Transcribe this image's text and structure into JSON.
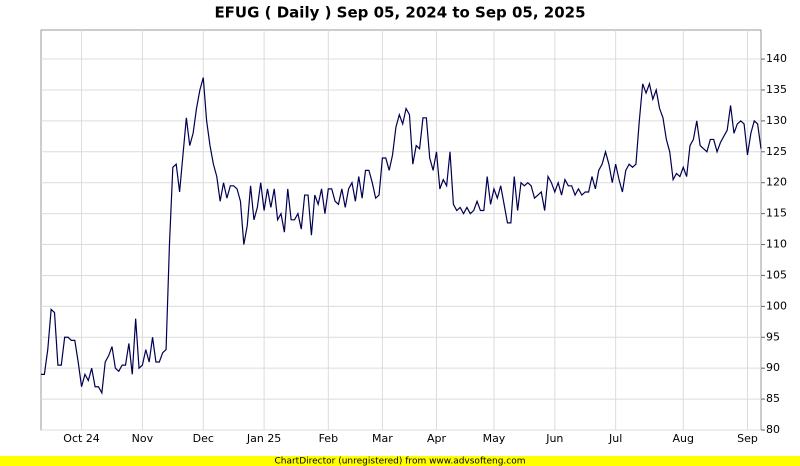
{
  "chart_data": {
    "type": "line",
    "title": "EFUG ( Daily ) Sep 05, 2024 to Sep 05, 2025",
    "footer": "ChartDirector (unregistered) from www.advsofteng.com",
    "categories": [
      null,
      null,
      null,
      null,
      null,
      null,
      null,
      null,
      null,
      null,
      null,
      null,
      "Oct 24",
      null,
      null,
      null,
      null,
      null,
      null,
      null,
      null,
      null,
      null,
      null,
      null,
      null,
      null,
      null,
      null,
      null,
      "Nov",
      null,
      null,
      null,
      null,
      null,
      null,
      null,
      null,
      null,
      null,
      null,
      null,
      null,
      null,
      null,
      null,
      null,
      "Dec",
      null,
      null,
      null,
      null,
      null,
      null,
      null,
      null,
      null,
      null,
      null,
      null,
      null,
      null,
      null,
      null,
      null,
      "Jan 25",
      null,
      null,
      null,
      null,
      null,
      null,
      null,
      null,
      null,
      null,
      null,
      null,
      null,
      null,
      null,
      null,
      null,
      null,
      "Feb",
      null,
      null,
      null,
      null,
      null,
      null,
      null,
      null,
      null,
      null,
      null,
      null,
      null,
      null,
      null,
      "Mar",
      null,
      null,
      null,
      null,
      null,
      null,
      null,
      null,
      null,
      null,
      null,
      null,
      null,
      null,
      null,
      "Apr",
      null,
      null,
      null,
      null,
      null,
      null,
      null,
      null,
      null,
      null,
      null,
      null,
      null,
      null,
      null,
      null,
      "May",
      null,
      null,
      null,
      null,
      null,
      null,
      null,
      null,
      null,
      null,
      null,
      null,
      null,
      null,
      null,
      null,
      null,
      "Jun",
      null,
      null,
      null,
      null,
      null,
      null,
      null,
      null,
      null,
      null,
      null,
      null,
      null,
      null,
      null,
      null,
      null,
      "Jul",
      null,
      null,
      null,
      null,
      null,
      null,
      null,
      null,
      null,
      null,
      null,
      null,
      null,
      null,
      null,
      null,
      null,
      null,
      null,
      "Aug",
      null,
      null,
      null,
      null,
      null,
      null,
      null,
      null,
      null,
      null,
      null,
      null,
      null,
      null,
      null,
      null,
      null,
      null,
      "Sep",
      null,
      null,
      null,
      null
    ],
    "series": [
      {
        "name": "EFUG",
        "color": "#000050",
        "values": [
          89,
          89,
          93,
          99.5,
          99,
          90.5,
          90.5,
          95,
          95,
          94.5,
          94.5,
          91,
          87,
          89,
          88,
          90,
          87,
          87,
          86,
          91,
          92,
          93.5,
          90,
          89.5,
          90.5,
          90.5,
          94,
          89,
          98,
          90,
          90.5,
          93,
          91,
          95,
          91,
          91,
          92.5,
          93,
          110,
          122.5,
          123,
          118.5,
          124.5,
          130.5,
          126,
          128,
          132,
          135,
          137,
          130,
          126,
          123,
          121,
          117,
          120,
          117.5,
          119.5,
          119.5,
          119,
          117,
          110,
          113,
          119.5,
          114,
          116,
          120,
          115.5,
          119,
          116,
          119,
          114,
          115,
          112,
          119,
          114,
          114,
          115,
          112.5,
          118,
          118,
          111.5,
          118,
          116.5,
          119,
          115,
          119,
          119,
          117,
          116.5,
          119,
          116,
          119,
          120,
          117,
          121,
          117.5,
          122,
          122,
          120,
          117.5,
          118,
          124,
          124,
          122,
          124.5,
          129,
          131,
          129.5,
          132,
          131,
          123,
          126,
          125.5,
          130.5,
          130.5,
          124,
          122,
          125,
          119,
          120.5,
          119.5,
          125,
          116.5,
          115.5,
          116,
          115,
          116,
          115,
          115.5,
          117,
          115.5,
          115.5,
          121,
          116.5,
          119,
          117.5,
          119.5,
          116.5,
          113.5,
          113.5,
          121,
          115.5,
          120,
          119.5,
          120,
          119.5,
          117.5,
          118,
          118.5,
          115.5,
          121,
          120,
          118.5,
          120,
          118,
          120.5,
          119.5,
          119.5,
          118,
          119,
          118,
          118.5,
          118.5,
          121,
          119,
          122,
          123,
          125,
          123,
          120,
          123,
          120.5,
          118.5,
          122,
          123,
          122.5,
          123,
          130,
          136,
          134.5,
          136,
          133.5,
          135,
          132,
          130.5,
          127,
          125,
          120.5,
          121.5,
          121,
          122.5,
          121,
          126,
          127,
          130,
          126,
          125.5,
          125,
          127,
          127,
          125,
          126.5,
          127.5,
          128.5,
          132.5,
          128,
          129.5,
          130,
          129.5,
          124.5,
          128,
          130,
          129.5,
          125.5
        ]
      }
    ],
    "ylim": [
      80,
      144.7
    ],
    "yticks": [
      80,
      85,
      90,
      95,
      100,
      105,
      110,
      115,
      120,
      125,
      130,
      135,
      140
    ],
    "grid": true
  }
}
